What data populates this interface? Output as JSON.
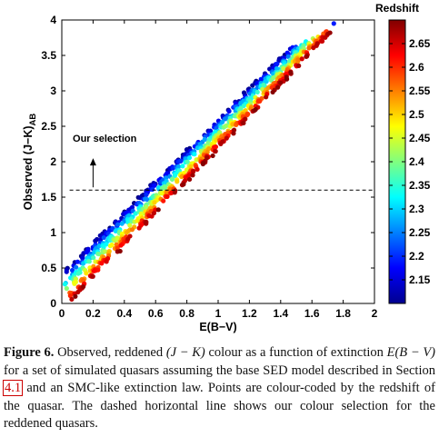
{
  "chart_data": {
    "type": "scatter",
    "title": "",
    "xlabel": "E(B−V)",
    "ylabel": "Observed (J−K)",
    "ylabel_subscript": "AB",
    "xlim": [
      0,
      2
    ],
    "ylim": [
      0,
      4
    ],
    "x_ticks": [
      "0",
      "0.2",
      "0.4",
      "0.6",
      "0.8",
      "1",
      "1.2",
      "1.4",
      "1.6",
      "1.8",
      "2"
    ],
    "y_ticks": [
      "0",
      "0.5",
      "1",
      "1.5",
      "2",
      "2.5",
      "3",
      "3.5",
      "4"
    ],
    "grid": false,
    "colorbar": {
      "label": "Redshift",
      "range": [
        2.1,
        2.7
      ],
      "ticks": [
        "2.15",
        "2.2",
        "2.25",
        "2.3",
        "2.35",
        "2.4",
        "2.45",
        "2.5",
        "2.55",
        "2.6",
        "2.65"
      ],
      "colormap": "jet"
    },
    "selection_line": {
      "y": 1.6,
      "style": "dashed"
    },
    "annotation": "Our selection",
    "series_description_ranges": {
      "blue_band_low_z": {
        "x": [
          0.0,
          1.45
        ],
        "y_at_x0": 0.42,
        "slope": 2.18,
        "z": [
          2.1,
          2.25
        ]
      },
      "red_band_high_z": {
        "x": [
          0.05,
          1.75
        ],
        "y_at_x0": -0.1,
        "slope": 2.28,
        "z": [
          2.5,
          2.7
        ]
      }
    }
  },
  "caption": {
    "lead": "Figure 6.",
    "part1": " Observed, reddened ",
    "math1": "(J − K)",
    "part2": " colour as a function of extinction ",
    "math2": "E(B − V)",
    "part3": " for a set of simulated quasars assuming the base SED model described in Section ",
    "ref": "4.1",
    "part4": " and an SMC-like extinction law. Points are colour-coded by the redshift of the quasar. The dashed horizontal line shows our colour selection for the reddened quasars."
  }
}
